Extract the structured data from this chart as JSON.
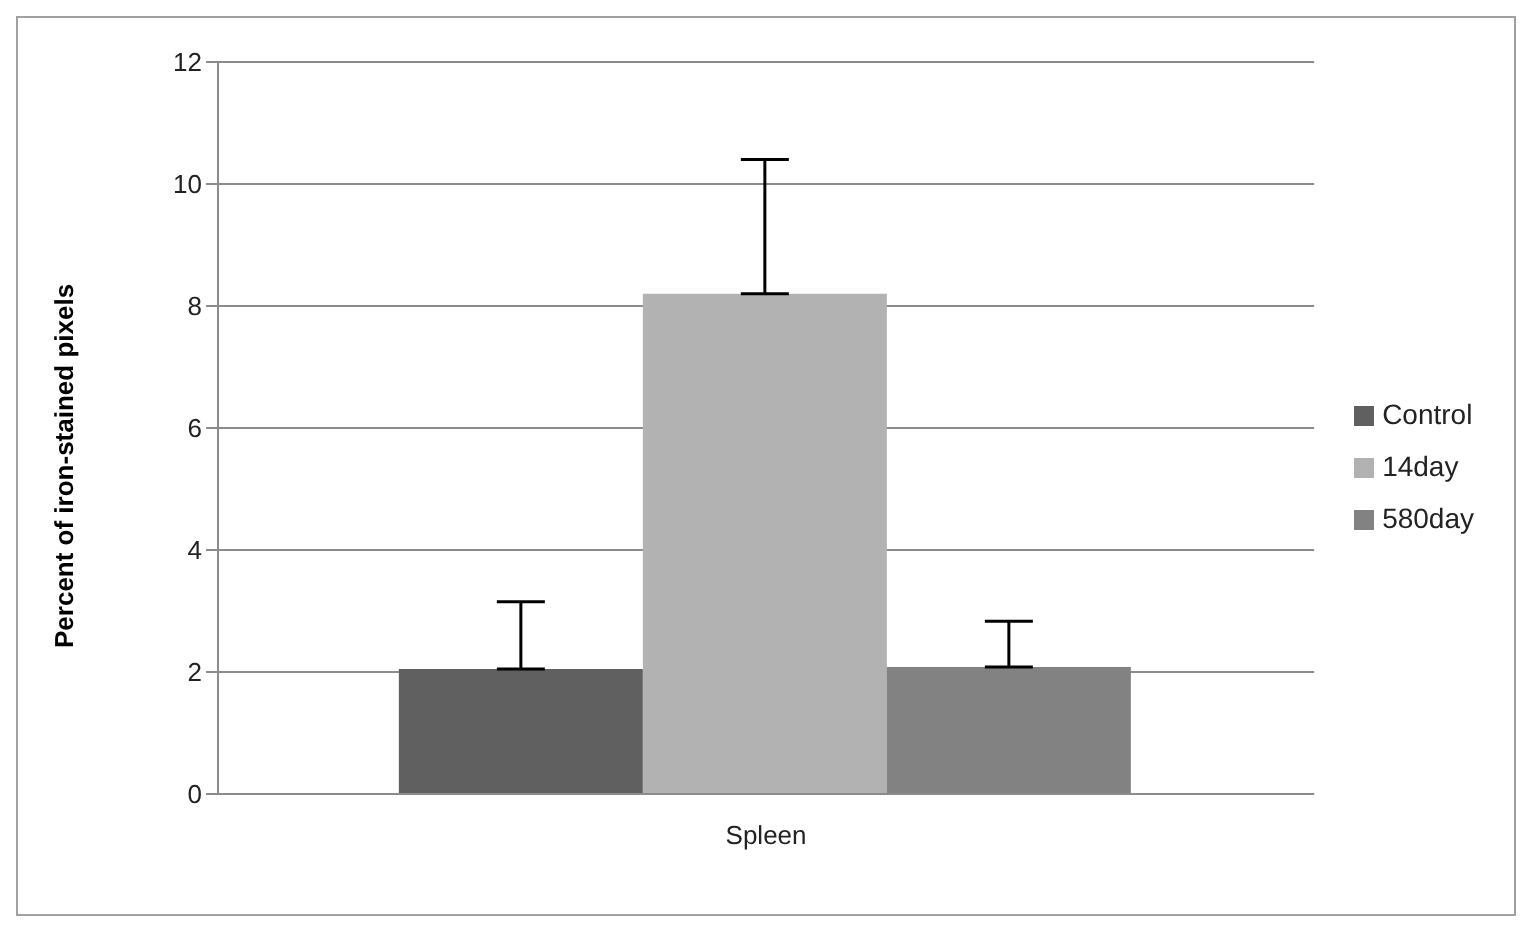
{
  "chart_data": {
    "type": "bar",
    "ylabel": "Percent of iron-stained pixels",
    "categories": [
      "Spleen"
    ],
    "series": [
      {
        "name": "Control",
        "color": "#606060",
        "values": [
          2.05
        ],
        "errors": [
          [
            2.05,
            3.15
          ]
        ]
      },
      {
        "name": "14day",
        "color": "#b2b2b2",
        "values": [
          8.2
        ],
        "errors": [
          [
            8.2,
            10.4
          ]
        ]
      },
      {
        "name": "580day",
        "color": "#828282",
        "values": [
          2.08
        ],
        "errors": [
          [
            2.08,
            2.83
          ]
        ]
      }
    ],
    "ylim": [
      0,
      12
    ],
    "yticks": [
      0,
      2,
      4,
      6,
      8,
      10,
      12
    ],
    "grid": "y",
    "legend": "right"
  }
}
